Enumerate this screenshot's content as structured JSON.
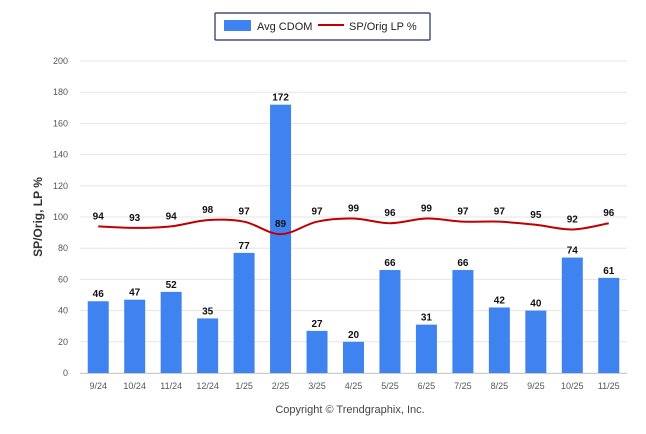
{
  "chart_data": {
    "type": "bar",
    "categories": [
      "9/24",
      "10/24",
      "11/24",
      "12/24",
      "1/25",
      "2/25",
      "3/25",
      "4/25",
      "5/25",
      "6/25",
      "7/25",
      "8/25",
      "9/25",
      "10/25",
      "11/25"
    ],
    "series": [
      {
        "name": "Avg CDOM",
        "type": "bar",
        "color": "#3f83f0",
        "values": [
          46,
          47,
          52,
          35,
          77,
          172,
          27,
          20,
          66,
          31,
          66,
          42,
          40,
          74,
          61
        ]
      },
      {
        "name": "SP/Orig LP %",
        "type": "line",
        "color": "#c00000",
        "values": [
          94,
          93,
          94,
          98,
          97,
          89,
          97,
          99,
          96,
          99,
          97,
          97,
          95,
          92,
          96
        ]
      }
    ],
    "ylabel": "SP/Orig, LP %",
    "ylim": [
      0,
      200
    ],
    "yticks": [
      0,
      20,
      40,
      60,
      80,
      100,
      120,
      140,
      160,
      180,
      200
    ],
    "grid": true,
    "legend_position": "top-center"
  },
  "credit": "Copyright © Trendgraphix, Inc."
}
